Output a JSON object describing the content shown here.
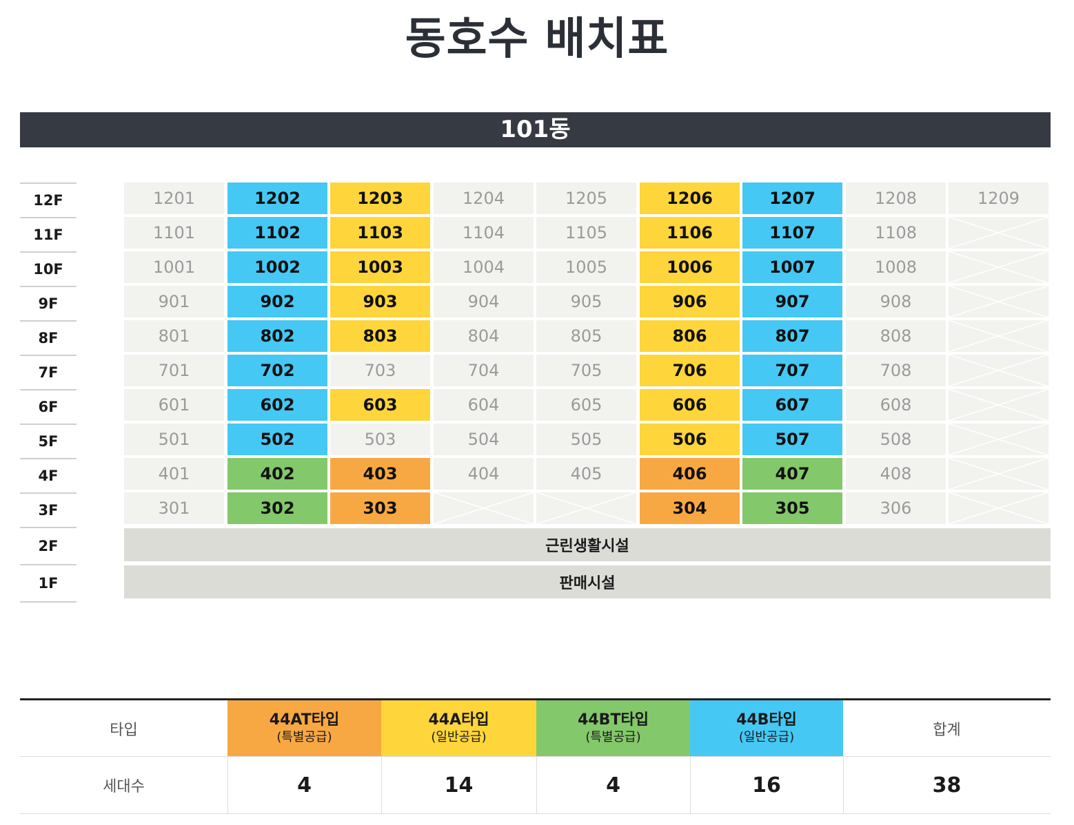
{
  "title": "동호수 배치표",
  "building": "101동",
  "colors": {
    "blue": "#45c8f4",
    "yellow": "#fed53a",
    "green": "#83c86a",
    "orange": "#f8a843",
    "plain": "#f2f2ef",
    "facility": "#dcdcd7",
    "header_bar": "#363a42"
  },
  "floors": [
    {
      "label": "12F",
      "units": [
        {
          "no": "1201",
          "c": "plain"
        },
        {
          "no": "1202",
          "c": "blue"
        },
        {
          "no": "1203",
          "c": "yellow"
        },
        {
          "no": "1204",
          "c": "plain"
        },
        {
          "no": "1205",
          "c": "plain"
        },
        {
          "no": "1206",
          "c": "yellow"
        },
        {
          "no": "1207",
          "c": "blue"
        },
        {
          "no": "1208",
          "c": "plain"
        },
        {
          "no": "1209",
          "c": "plain"
        }
      ]
    },
    {
      "label": "11F",
      "units": [
        {
          "no": "1101",
          "c": "plain"
        },
        {
          "no": "1102",
          "c": "blue"
        },
        {
          "no": "1103",
          "c": "yellow"
        },
        {
          "no": "1104",
          "c": "plain"
        },
        {
          "no": "1105",
          "c": "plain"
        },
        {
          "no": "1106",
          "c": "yellow"
        },
        {
          "no": "1107",
          "c": "blue"
        },
        {
          "no": "1108",
          "c": "plain"
        },
        {
          "no": "",
          "c": "none"
        }
      ]
    },
    {
      "label": "10F",
      "units": [
        {
          "no": "1001",
          "c": "plain"
        },
        {
          "no": "1002",
          "c": "blue"
        },
        {
          "no": "1003",
          "c": "yellow"
        },
        {
          "no": "1004",
          "c": "plain"
        },
        {
          "no": "1005",
          "c": "plain"
        },
        {
          "no": "1006",
          "c": "yellow"
        },
        {
          "no": "1007",
          "c": "blue"
        },
        {
          "no": "1008",
          "c": "plain"
        },
        {
          "no": "",
          "c": "none"
        }
      ]
    },
    {
      "label": "9F",
      "units": [
        {
          "no": "901",
          "c": "plain"
        },
        {
          "no": "902",
          "c": "blue"
        },
        {
          "no": "903",
          "c": "yellow"
        },
        {
          "no": "904",
          "c": "plain"
        },
        {
          "no": "905",
          "c": "plain"
        },
        {
          "no": "906",
          "c": "yellow"
        },
        {
          "no": "907",
          "c": "blue"
        },
        {
          "no": "908",
          "c": "plain"
        },
        {
          "no": "",
          "c": "none"
        }
      ]
    },
    {
      "label": "8F",
      "units": [
        {
          "no": "801",
          "c": "plain"
        },
        {
          "no": "802",
          "c": "blue"
        },
        {
          "no": "803",
          "c": "yellow"
        },
        {
          "no": "804",
          "c": "plain"
        },
        {
          "no": "805",
          "c": "plain"
        },
        {
          "no": "806",
          "c": "yellow"
        },
        {
          "no": "807",
          "c": "blue"
        },
        {
          "no": "808",
          "c": "plain"
        },
        {
          "no": "",
          "c": "none"
        }
      ]
    },
    {
      "label": "7F",
      "units": [
        {
          "no": "701",
          "c": "plain"
        },
        {
          "no": "702",
          "c": "blue"
        },
        {
          "no": "703",
          "c": "plain"
        },
        {
          "no": "704",
          "c": "plain"
        },
        {
          "no": "705",
          "c": "plain"
        },
        {
          "no": "706",
          "c": "yellow"
        },
        {
          "no": "707",
          "c": "blue"
        },
        {
          "no": "708",
          "c": "plain"
        },
        {
          "no": "",
          "c": "none"
        }
      ]
    },
    {
      "label": "6F",
      "units": [
        {
          "no": "601",
          "c": "plain"
        },
        {
          "no": "602",
          "c": "blue"
        },
        {
          "no": "603",
          "c": "yellow"
        },
        {
          "no": "604",
          "c": "plain"
        },
        {
          "no": "605",
          "c": "plain"
        },
        {
          "no": "606",
          "c": "yellow"
        },
        {
          "no": "607",
          "c": "blue"
        },
        {
          "no": "608",
          "c": "plain"
        },
        {
          "no": "",
          "c": "none"
        }
      ]
    },
    {
      "label": "5F",
      "units": [
        {
          "no": "501",
          "c": "plain"
        },
        {
          "no": "502",
          "c": "blue"
        },
        {
          "no": "503",
          "c": "plain"
        },
        {
          "no": "504",
          "c": "plain"
        },
        {
          "no": "505",
          "c": "plain"
        },
        {
          "no": "506",
          "c": "yellow"
        },
        {
          "no": "507",
          "c": "blue"
        },
        {
          "no": "508",
          "c": "plain"
        },
        {
          "no": "",
          "c": "none"
        }
      ]
    },
    {
      "label": "4F",
      "units": [
        {
          "no": "401",
          "c": "plain"
        },
        {
          "no": "402",
          "c": "green"
        },
        {
          "no": "403",
          "c": "orange"
        },
        {
          "no": "404",
          "c": "plain"
        },
        {
          "no": "405",
          "c": "plain"
        },
        {
          "no": "406",
          "c": "orange"
        },
        {
          "no": "407",
          "c": "green"
        },
        {
          "no": "408",
          "c": "plain"
        },
        {
          "no": "",
          "c": "none"
        }
      ]
    },
    {
      "label": "3F",
      "units": [
        {
          "no": "301",
          "c": "plain"
        },
        {
          "no": "302",
          "c": "green"
        },
        {
          "no": "303",
          "c": "orange"
        },
        {
          "no": "",
          "c": "none"
        },
        {
          "no": "",
          "c": "none"
        },
        {
          "no": "304",
          "c": "orange"
        },
        {
          "no": "305",
          "c": "green"
        },
        {
          "no": "306",
          "c": "plain"
        },
        {
          "no": "",
          "c": "none"
        }
      ]
    }
  ],
  "facilities": [
    {
      "floor": "2F",
      "label": "근린생활시설"
    },
    {
      "floor": "1F",
      "label": "판매시설"
    }
  ],
  "summary": {
    "type_header": "타입",
    "count_header": "세대수",
    "types": [
      {
        "name": "44AT타입",
        "sub": "(특별공급)",
        "count": "4",
        "color": "orange"
      },
      {
        "name": "44A타입",
        "sub": "(일반공급)",
        "count": "14",
        "color": "yellow"
      },
      {
        "name": "44BT타입",
        "sub": "(특별공급)",
        "count": "4",
        "color": "green"
      },
      {
        "name": "44B타입",
        "sub": "(일반공급)",
        "count": "16",
        "color": "blue"
      }
    ],
    "total_label": "합계",
    "total_count": "38"
  }
}
